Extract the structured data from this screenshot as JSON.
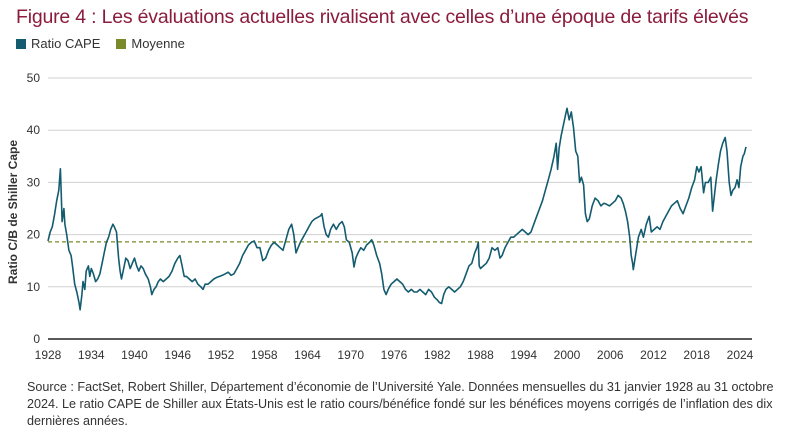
{
  "chart_data": {
    "type": "line",
    "title": "Figure 4 : Les évaluations actuelles rivalisent avec celles d’une époque de tarifs élevés",
    "ylabel": "Ratio C/B de Shiller Cape",
    "xlabel": "",
    "ylim": [
      0,
      50
    ],
    "xlim": [
      1928,
      2024.9
    ],
    "yticks": [
      0,
      10,
      20,
      30,
      40,
      50
    ],
    "xticks": [
      1928,
      1934,
      1940,
      1946,
      1952,
      1958,
      1964,
      1970,
      1976,
      1982,
      1988,
      1994,
      2000,
      2006,
      2012,
      2018,
      2024
    ],
    "grid": "horizontal",
    "legend": "top-left",
    "series": [
      {
        "name": "Ratio CAPE",
        "color": "#135c70",
        "points": [
          [
            1928.0,
            18.8
          ],
          [
            1928.3,
            20.5
          ],
          [
            1928.6,
            21.5
          ],
          [
            1928.9,
            23.8
          ],
          [
            1929.2,
            26.5
          ],
          [
            1929.5,
            28.5
          ],
          [
            1929.72,
            32.6
          ],
          [
            1929.85,
            27.5
          ],
          [
            1929.95,
            22.5
          ],
          [
            1930.2,
            25.0
          ],
          [
            1930.35,
            22.0
          ],
          [
            1930.6,
            20.0
          ],
          [
            1930.9,
            17.0
          ],
          [
            1931.2,
            16.0
          ],
          [
            1931.4,
            14.0
          ],
          [
            1931.7,
            10.5
          ],
          [
            1932.0,
            9.0
          ],
          [
            1932.3,
            7.0
          ],
          [
            1932.45,
            5.6
          ],
          [
            1932.7,
            8.5
          ],
          [
            1932.85,
            11.0
          ],
          [
            1933.1,
            9.5
          ],
          [
            1933.3,
            13.0
          ],
          [
            1933.6,
            14.0
          ],
          [
            1933.8,
            12.0
          ],
          [
            1934.0,
            13.5
          ],
          [
            1934.3,
            12.5
          ],
          [
            1934.6,
            11.0
          ],
          [
            1934.9,
            11.5
          ],
          [
            1935.2,
            12.5
          ],
          [
            1935.5,
            14.5
          ],
          [
            1935.8,
            16.5
          ],
          [
            1936.1,
            18.5
          ],
          [
            1936.4,
            19.5
          ],
          [
            1936.7,
            21.0
          ],
          [
            1937.0,
            22.0
          ],
          [
            1937.2,
            21.5
          ],
          [
            1937.5,
            20.5
          ],
          [
            1937.8,
            15.5
          ],
          [
            1938.0,
            13.0
          ],
          [
            1938.2,
            11.5
          ],
          [
            1938.5,
            13.5
          ],
          [
            1938.8,
            15.5
          ],
          [
            1939.1,
            15.0
          ],
          [
            1939.4,
            13.5
          ],
          [
            1939.7,
            14.5
          ],
          [
            1940.0,
            15.5
          ],
          [
            1940.3,
            14.0
          ],
          [
            1940.6,
            13.0
          ],
          [
            1940.9,
            14.0
          ],
          [
            1941.2,
            13.5
          ],
          [
            1941.5,
            12.5
          ],
          [
            1941.9,
            11.5
          ],
          [
            1942.2,
            10.0
          ],
          [
            1942.4,
            8.5
          ],
          [
            1942.7,
            9.5
          ],
          [
            1943.0,
            10.0
          ],
          [
            1943.3,
            11.0
          ],
          [
            1943.6,
            11.5
          ],
          [
            1944.0,
            11.0
          ],
          [
            1944.4,
            11.5
          ],
          [
            1944.8,
            12.0
          ],
          [
            1945.2,
            13.0
          ],
          [
            1945.6,
            14.5
          ],
          [
            1946.0,
            15.5
          ],
          [
            1946.3,
            16.0
          ],
          [
            1946.6,
            14.0
          ],
          [
            1946.9,
            12.0
          ],
          [
            1947.2,
            12.0
          ],
          [
            1947.6,
            11.5
          ],
          [
            1948.0,
            11.0
          ],
          [
            1948.4,
            11.5
          ],
          [
            1948.8,
            10.5
          ],
          [
            1949.2,
            10.0
          ],
          [
            1949.5,
            9.5
          ],
          [
            1949.8,
            10.5
          ],
          [
            1950.2,
            10.5
          ],
          [
            1950.6,
            11.0
          ],
          [
            1951.0,
            11.5
          ],
          [
            1951.4,
            11.8
          ],
          [
            1951.8,
            12.0
          ],
          [
            1952.2,
            12.2
          ],
          [
            1952.6,
            12.5
          ],
          [
            1953.0,
            12.8
          ],
          [
            1953.4,
            12.2
          ],
          [
            1953.8,
            12.5
          ],
          [
            1954.2,
            13.5
          ],
          [
            1954.6,
            14.5
          ],
          [
            1955.0,
            16.0
          ],
          [
            1955.4,
            17.0
          ],
          [
            1955.8,
            18.0
          ],
          [
            1956.2,
            18.5
          ],
          [
            1956.6,
            18.8
          ],
          [
            1957.0,
            17.5
          ],
          [
            1957.4,
            17.5
          ],
          [
            1957.8,
            15.0
          ],
          [
            1958.2,
            15.5
          ],
          [
            1958.6,
            17.0
          ],
          [
            1959.0,
            18.0
          ],
          [
            1959.4,
            18.5
          ],
          [
            1959.8,
            18.0
          ],
          [
            1960.2,
            17.5
          ],
          [
            1960.6,
            17.0
          ],
          [
            1961.0,
            19.0
          ],
          [
            1961.4,
            21.0
          ],
          [
            1961.8,
            22.0
          ],
          [
            1962.1,
            20.0
          ],
          [
            1962.4,
            16.5
          ],
          [
            1962.7,
            17.5
          ],
          [
            1963.0,
            18.5
          ],
          [
            1963.4,
            19.5
          ],
          [
            1963.8,
            20.5
          ],
          [
            1964.2,
            21.5
          ],
          [
            1964.6,
            22.5
          ],
          [
            1965.0,
            23.0
          ],
          [
            1965.4,
            23.3
          ],
          [
            1965.8,
            23.6
          ],
          [
            1966.0,
            24.0
          ],
          [
            1966.3,
            21.5
          ],
          [
            1966.6,
            20.0
          ],
          [
            1966.9,
            19.5
          ],
          [
            1967.2,
            21.0
          ],
          [
            1967.6,
            22.0
          ],
          [
            1968.0,
            21.0
          ],
          [
            1968.4,
            22.0
          ],
          [
            1968.8,
            22.5
          ],
          [
            1969.1,
            21.5
          ],
          [
            1969.4,
            19.0
          ],
          [
            1969.8,
            18.5
          ],
          [
            1970.2,
            16.5
          ],
          [
            1970.45,
            13.8
          ],
          [
            1970.7,
            15.5
          ],
          [
            1971.0,
            16.5
          ],
          [
            1971.4,
            17.5
          ],
          [
            1971.8,
            17.0
          ],
          [
            1972.2,
            18.0
          ],
          [
            1972.6,
            18.5
          ],
          [
            1972.9,
            19.0
          ],
          [
            1973.2,
            18.0
          ],
          [
            1973.6,
            16.0
          ],
          [
            1974.0,
            14.5
          ],
          [
            1974.3,
            12.5
          ],
          [
            1974.6,
            9.5
          ],
          [
            1974.9,
            8.5
          ],
          [
            1975.2,
            9.5
          ],
          [
            1975.6,
            10.5
          ],
          [
            1976.0,
            11.0
          ],
          [
            1976.4,
            11.5
          ],
          [
            1976.8,
            11.0
          ],
          [
            1977.2,
            10.5
          ],
          [
            1977.6,
            9.5
          ],
          [
            1978.0,
            9.0
          ],
          [
            1978.4,
            9.5
          ],
          [
            1978.8,
            9.0
          ],
          [
            1979.2,
            9.0
          ],
          [
            1979.6,
            9.5
          ],
          [
            1980.0,
            9.0
          ],
          [
            1980.4,
            8.5
          ],
          [
            1980.8,
            9.5
          ],
          [
            1981.2,
            9.0
          ],
          [
            1981.6,
            8.0
          ],
          [
            1982.0,
            7.5
          ],
          [
            1982.3,
            7.0
          ],
          [
            1982.6,
            6.8
          ],
          [
            1982.9,
            8.5
          ],
          [
            1983.2,
            9.5
          ],
          [
            1983.6,
            10.0
          ],
          [
            1984.0,
            9.5
          ],
          [
            1984.4,
            9.0
          ],
          [
            1984.8,
            9.5
          ],
          [
            1985.2,
            10.0
          ],
          [
            1985.6,
            11.0
          ],
          [
            1986.0,
            12.5
          ],
          [
            1986.4,
            14.0
          ],
          [
            1986.8,
            14.5
          ],
          [
            1987.2,
            16.5
          ],
          [
            1987.5,
            17.5
          ],
          [
            1987.7,
            18.5
          ],
          [
            1987.82,
            14.0
          ],
          [
            1988.0,
            13.5
          ],
          [
            1988.4,
            14.0
          ],
          [
            1988.8,
            14.5
          ],
          [
            1989.2,
            15.5
          ],
          [
            1989.6,
            17.5
          ],
          [
            1990.0,
            17.0
          ],
          [
            1990.4,
            17.5
          ],
          [
            1990.7,
            15.5
          ],
          [
            1991.0,
            16.0
          ],
          [
            1991.4,
            17.5
          ],
          [
            1991.8,
            18.5
          ],
          [
            1992.2,
            19.5
          ],
          [
            1992.6,
            19.5
          ],
          [
            1993.0,
            20.0
          ],
          [
            1993.4,
            20.5
          ],
          [
            1993.8,
            21.0
          ],
          [
            1994.2,
            20.5
          ],
          [
            1994.6,
            20.0
          ],
          [
            1995.0,
            20.5
          ],
          [
            1995.4,
            22.0
          ],
          [
            1995.8,
            23.5
          ],
          [
            1996.2,
            25.0
          ],
          [
            1996.6,
            26.5
          ],
          [
            1997.0,
            28.5
          ],
          [
            1997.4,
            30.5
          ],
          [
            1997.8,
            32.5
          ],
          [
            1998.2,
            35.0
          ],
          [
            1998.5,
            37.5
          ],
          [
            1998.7,
            32.5
          ],
          [
            1998.9,
            36.5
          ],
          [
            1999.2,
            39.0
          ],
          [
            1999.5,
            41.0
          ],
          [
            1999.8,
            43.0
          ],
          [
            2000.0,
            44.2
          ],
          [
            2000.3,
            42.0
          ],
          [
            2000.6,
            43.5
          ],
          [
            2000.9,
            40.5
          ],
          [
            2001.2,
            36.0
          ],
          [
            2001.5,
            35.0
          ],
          [
            2001.75,
            30.0
          ],
          [
            2002.0,
            31.0
          ],
          [
            2002.3,
            29.5
          ],
          [
            2002.55,
            24.0
          ],
          [
            2002.8,
            22.5
          ],
          [
            2003.1,
            23.0
          ],
          [
            2003.5,
            25.5
          ],
          [
            2003.9,
            27.0
          ],
          [
            2004.3,
            26.5
          ],
          [
            2004.7,
            25.5
          ],
          [
            2005.1,
            26.0
          ],
          [
            2005.5,
            25.8
          ],
          [
            2005.9,
            25.5
          ],
          [
            2006.3,
            26.0
          ],
          [
            2006.7,
            26.5
          ],
          [
            2007.1,
            27.5
          ],
          [
            2007.5,
            27.0
          ],
          [
            2007.8,
            26.0
          ],
          [
            2008.1,
            24.5
          ],
          [
            2008.4,
            22.5
          ],
          [
            2008.7,
            19.5
          ],
          [
            2008.9,
            16.0
          ],
          [
            2009.1,
            14.5
          ],
          [
            2009.2,
            13.3
          ],
          [
            2009.5,
            16.0
          ],
          [
            2009.9,
            19.5
          ],
          [
            2010.3,
            21.0
          ],
          [
            2010.6,
            19.5
          ],
          [
            2011.0,
            22.0
          ],
          [
            2011.4,
            23.5
          ],
          [
            2011.7,
            20.5
          ],
          [
            2012.1,
            21.0
          ],
          [
            2012.5,
            21.5
          ],
          [
            2012.9,
            21.0
          ],
          [
            2013.3,
            22.5
          ],
          [
            2013.7,
            23.5
          ],
          [
            2014.1,
            24.5
          ],
          [
            2014.5,
            25.5
          ],
          [
            2014.9,
            26.0
          ],
          [
            2015.3,
            26.5
          ],
          [
            2015.7,
            25.0
          ],
          [
            2016.1,
            24.0
          ],
          [
            2016.5,
            25.5
          ],
          [
            2016.9,
            27.0
          ],
          [
            2017.3,
            29.0
          ],
          [
            2017.7,
            30.5
          ],
          [
            2018.0,
            33.0
          ],
          [
            2018.3,
            32.0
          ],
          [
            2018.6,
            33.0
          ],
          [
            2018.95,
            28.0
          ],
          [
            2019.2,
            30.0
          ],
          [
            2019.6,
            30.0
          ],
          [
            2019.95,
            31.0
          ],
          [
            2020.2,
            24.5
          ],
          [
            2020.4,
            27.0
          ],
          [
            2020.7,
            30.5
          ],
          [
            2021.0,
            33.5
          ],
          [
            2021.3,
            36.0
          ],
          [
            2021.6,
            37.5
          ],
          [
            2021.95,
            38.6
          ],
          [
            2022.2,
            36.0
          ],
          [
            2022.5,
            30.0
          ],
          [
            2022.75,
            27.5
          ],
          [
            2023.0,
            28.5
          ],
          [
            2023.3,
            29.0
          ],
          [
            2023.6,
            30.5
          ],
          [
            2023.85,
            29.0
          ],
          [
            2024.1,
            33.0
          ],
          [
            2024.4,
            35.0
          ],
          [
            2024.6,
            35.5
          ],
          [
            2024.83,
            36.8
          ]
        ]
      },
      {
        "name": "Moyenne",
        "color": "#7a8a2a",
        "dashed": true,
        "value": 18.6
      }
    ]
  },
  "source_text": "Source : FactSet, Robert Shiller, Département d’économie de l’Université Yale. Données mensuelles du 31 janvier 1928 au 31 octobre 2024. Le ratio CAPE de Shiller aux États-Unis est le ratio cours/bénéfice fondé sur les bénéfices moyens corrigés de l’inflation des dix dernières années."
}
